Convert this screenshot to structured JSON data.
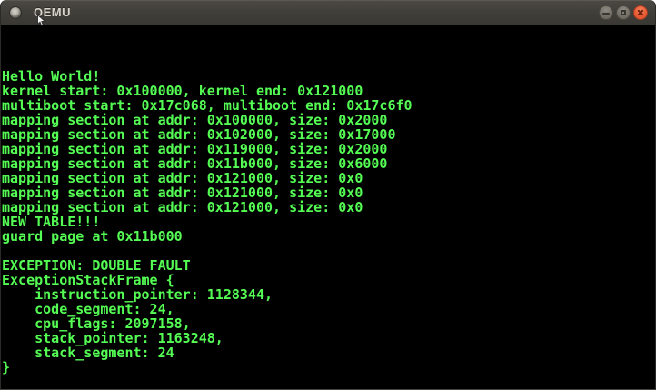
{
  "window": {
    "title": "QEMU",
    "app_icon": "circle-dot-icon",
    "controls": {
      "minimize_icon": "minimize-icon",
      "maximize_icon": "maximize-icon",
      "close_icon": "close-icon"
    }
  },
  "terminal": {
    "columns": 80,
    "rows": 25,
    "lines": [
      "",
      "",
      "",
      "Hello World!",
      "kernel start: 0x100000, kernel end: 0x121000",
      "multiboot start: 0x17c068, multiboot end: 0x17c6f0",
      "mapping section at addr: 0x100000, size: 0x2000",
      "mapping section at addr: 0x102000, size: 0x17000",
      "mapping section at addr: 0x119000, size: 0x2000",
      "mapping section at addr: 0x11b000, size: 0x6000",
      "mapping section at addr: 0x121000, size: 0x0",
      "mapping section at addr: 0x121000, size: 0x0",
      "mapping section at addr: 0x121000, size: 0x0",
      "NEW TABLE!!!",
      "guard page at 0x11b000",
      "",
      "EXCEPTION: DOUBLE FAULT",
      "ExceptionStackFrame {",
      "    instruction_pointer: 1128344,",
      "    code_segment: 24,",
      "    cpu_flags: 2097158,",
      "    stack_pointer: 1163248,",
      "    stack_segment: 24",
      "}"
    ],
    "colors": {
      "foreground": "#54fc54",
      "background": "#000000"
    }
  },
  "theme": {
    "titlebar_top": "#4b4944",
    "titlebar_bottom": "#3a3833",
    "title_color": "#d8d4cc",
    "close_button": "#e85b35",
    "control_button": "#757168"
  }
}
